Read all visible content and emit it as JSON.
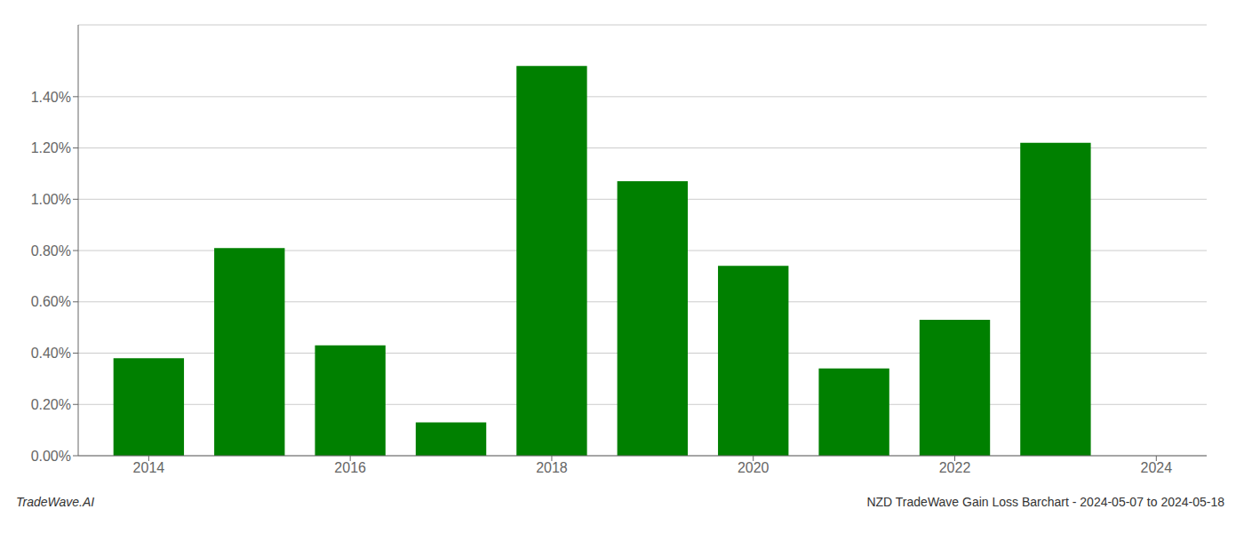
{
  "chart_data": {
    "type": "bar",
    "x": [
      2014,
      2015,
      2016,
      2017,
      2018,
      2019,
      2020,
      2021,
      2022,
      2023
    ],
    "values": [
      0.0038,
      0.0081,
      0.0043,
      0.0013,
      0.0152,
      0.0107,
      0.0074,
      0.0034,
      0.0053,
      0.0122
    ],
    "color": "#008000",
    "xlim": [
      2013.3,
      2024.5
    ],
    "xticks": [
      2014,
      2016,
      2018,
      2020,
      2022,
      2024
    ],
    "ylim": [
      0,
      0.0168
    ],
    "yticks": [
      {
        "value": 0.0,
        "label": "0.00%"
      },
      {
        "value": 0.002,
        "label": "0.20%"
      },
      {
        "value": 0.004,
        "label": "0.40%"
      },
      {
        "value": 0.006,
        "label": "0.60%"
      },
      {
        "value": 0.008,
        "label": "0.80%"
      },
      {
        "value": 0.01,
        "label": "1.00%"
      },
      {
        "value": 0.012,
        "label": "1.20%"
      },
      {
        "value": 0.014,
        "label": "1.40%"
      }
    ],
    "grid": true,
    "annotations": [
      "TradeWave.AI",
      "NZD TradeWave Gain Loss Barchart - 2024-05-07 to 2024-05-18"
    ]
  }
}
